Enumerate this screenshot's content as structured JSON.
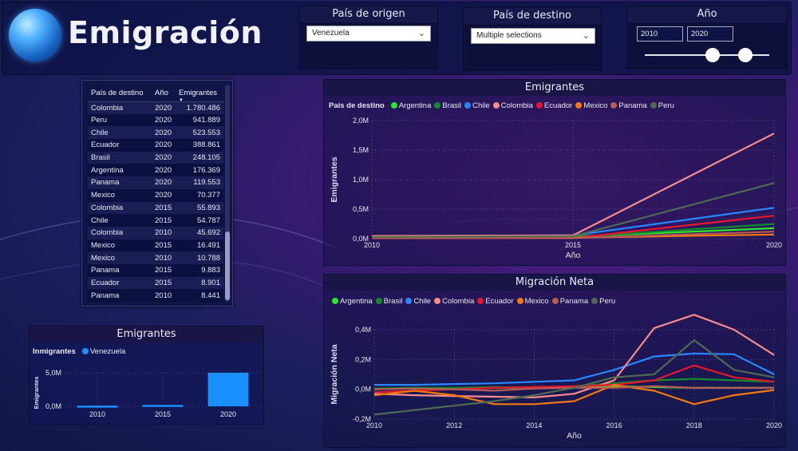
{
  "header": {
    "title": "Emigración"
  },
  "origin_slicer": {
    "title": "País de origen",
    "value": "Venezuela"
  },
  "dest_slicer": {
    "title": "País de destino",
    "value": "Multiple selections"
  },
  "year_slicer": {
    "title": "Año",
    "from": "2010",
    "to": "2020"
  },
  "table": {
    "columns": [
      "País de destino",
      "Año",
      "Emigrantes"
    ],
    "rows": [
      [
        "Colombia",
        "2020",
        "1.780.486"
      ],
      [
        "Peru",
        "2020",
        "941.889"
      ],
      [
        "Chile",
        "2020",
        "523.553"
      ],
      [
        "Ecuador",
        "2020",
        "388.861"
      ],
      [
        "Brasil",
        "2020",
        "248.105"
      ],
      [
        "Argentina",
        "2020",
        "176.369"
      ],
      [
        "Panama",
        "2020",
        "119.553"
      ],
      [
        "Mexico",
        "2020",
        "70.377"
      ],
      [
        "Colombia",
        "2015",
        "55.893"
      ],
      [
        "Chile",
        "2015",
        "54.787"
      ],
      [
        "Colombia",
        "2010",
        "45.692"
      ],
      [
        "Mexico",
        "2015",
        "16.491"
      ],
      [
        "Mexico",
        "2010",
        "10.788"
      ],
      [
        "Panama",
        "2015",
        "9.883"
      ],
      [
        "Ecuador",
        "2015",
        "8.901"
      ],
      [
        "Panama",
        "2010",
        "8.441"
      ]
    ]
  },
  "colors": {
    "Argentina": "#2ee62e",
    "Brasil": "#138a2e",
    "Chile": "#2a86ff",
    "Colombia": "#f78a8a",
    "Ecuador": "#e6162e",
    "Mexico": "#f5780f",
    "Panama": "#b85a56",
    "Peru": "#4f6a52",
    "Venezuela": "#1a8fff"
  },
  "chart_data": [
    {
      "type": "line",
      "title": "Emigrantes",
      "legend_title": "País de destino",
      "xlabel": "Año",
      "ylabel": "Emigrantes",
      "x": [
        2010,
        2015,
        2020
      ],
      "xticks": [
        "2010",
        "2015",
        "2020"
      ],
      "ylim": [
        0,
        2000000
      ],
      "yticks": [
        "0,0M",
        "0,5M",
        "1,0M",
        "1,5M",
        "2,0M"
      ],
      "series": [
        {
          "name": "Argentina",
          "values": [
            30000,
            35000,
            176369
          ]
        },
        {
          "name": "Brasil",
          "values": [
            20000,
            25000,
            248105
          ]
        },
        {
          "name": "Chile",
          "values": [
            40000,
            54787,
            523553
          ]
        },
        {
          "name": "Colombia",
          "values": [
            45692,
            55893,
            1780486
          ]
        },
        {
          "name": "Ecuador",
          "values": [
            25000,
            8901,
            388861
          ]
        },
        {
          "name": "Mexico",
          "values": [
            10788,
            16491,
            70377
          ]
        },
        {
          "name": "Panama",
          "values": [
            8441,
            9883,
            119553
          ]
        },
        {
          "name": "Peru",
          "values": [
            30000,
            40000,
            941889
          ]
        }
      ]
    },
    {
      "type": "line",
      "title": "Migración Neta",
      "legend_title": "",
      "xlabel": "Año",
      "ylabel": "Migración Neta",
      "x": [
        2010,
        2011,
        2012,
        2013,
        2014,
        2015,
        2016,
        2017,
        2018,
        2019,
        2020
      ],
      "xticks": [
        "2010",
        "2012",
        "2014",
        "2016",
        "2018",
        "2020"
      ],
      "ylim": [
        -200000,
        400000
      ],
      "yticks": [
        "-0,2M",
        "0,0M",
        "0,2M",
        "0,4M"
      ],
      "series": [
        {
          "name": "Argentina",
          "values": [
            0,
            5000,
            5000,
            10000,
            10000,
            15000,
            20000,
            15000,
            10000,
            10000,
            10000
          ]
        },
        {
          "name": "Brasil",
          "values": [
            5000,
            10000,
            10000,
            15000,
            10000,
            20000,
            40000,
            60000,
            70000,
            60000,
            50000
          ]
        },
        {
          "name": "Chile",
          "values": [
            30000,
            30000,
            35000,
            40000,
            50000,
            60000,
            130000,
            220000,
            240000,
            235000,
            100000
          ]
        },
        {
          "name": "Colombia",
          "values": [
            -30000,
            -40000,
            -45000,
            -50000,
            -55000,
            -30000,
            60000,
            410000,
            500000,
            400000,
            230000
          ]
        },
        {
          "name": "Ecuador",
          "values": [
            -20000,
            -10000,
            0,
            10000,
            15000,
            20000,
            30000,
            60000,
            160000,
            80000,
            50000
          ]
        },
        {
          "name": "Mexico",
          "values": [
            -40000,
            -10000,
            -40000,
            -100000,
            -100000,
            -80000,
            30000,
            -10000,
            -100000,
            -40000,
            -5000
          ]
        },
        {
          "name": "Panama",
          "values": [
            0,
            5000,
            0,
            -10000,
            5000,
            10000,
            10000,
            20000,
            10000,
            10000,
            10000
          ]
        },
        {
          "name": "Peru",
          "values": [
            -170000,
            -140000,
            -110000,
            -80000,
            -40000,
            10000,
            80000,
            100000,
            330000,
            130000,
            80000
          ]
        }
      ]
    },
    {
      "type": "bar",
      "title": "Emigrantes",
      "legend_title": "Inmigrantes",
      "ylabel": "Emigrantes",
      "categories": [
        "2010",
        "2015",
        "2020"
      ],
      "series": [
        {
          "name": "Venezuela",
          "values": [
            100000,
            200000,
            5000000
          ]
        }
      ],
      "ylim": [
        0,
        5000000
      ],
      "yticks": [
        "0,0M",
        "5,0M"
      ]
    }
  ]
}
